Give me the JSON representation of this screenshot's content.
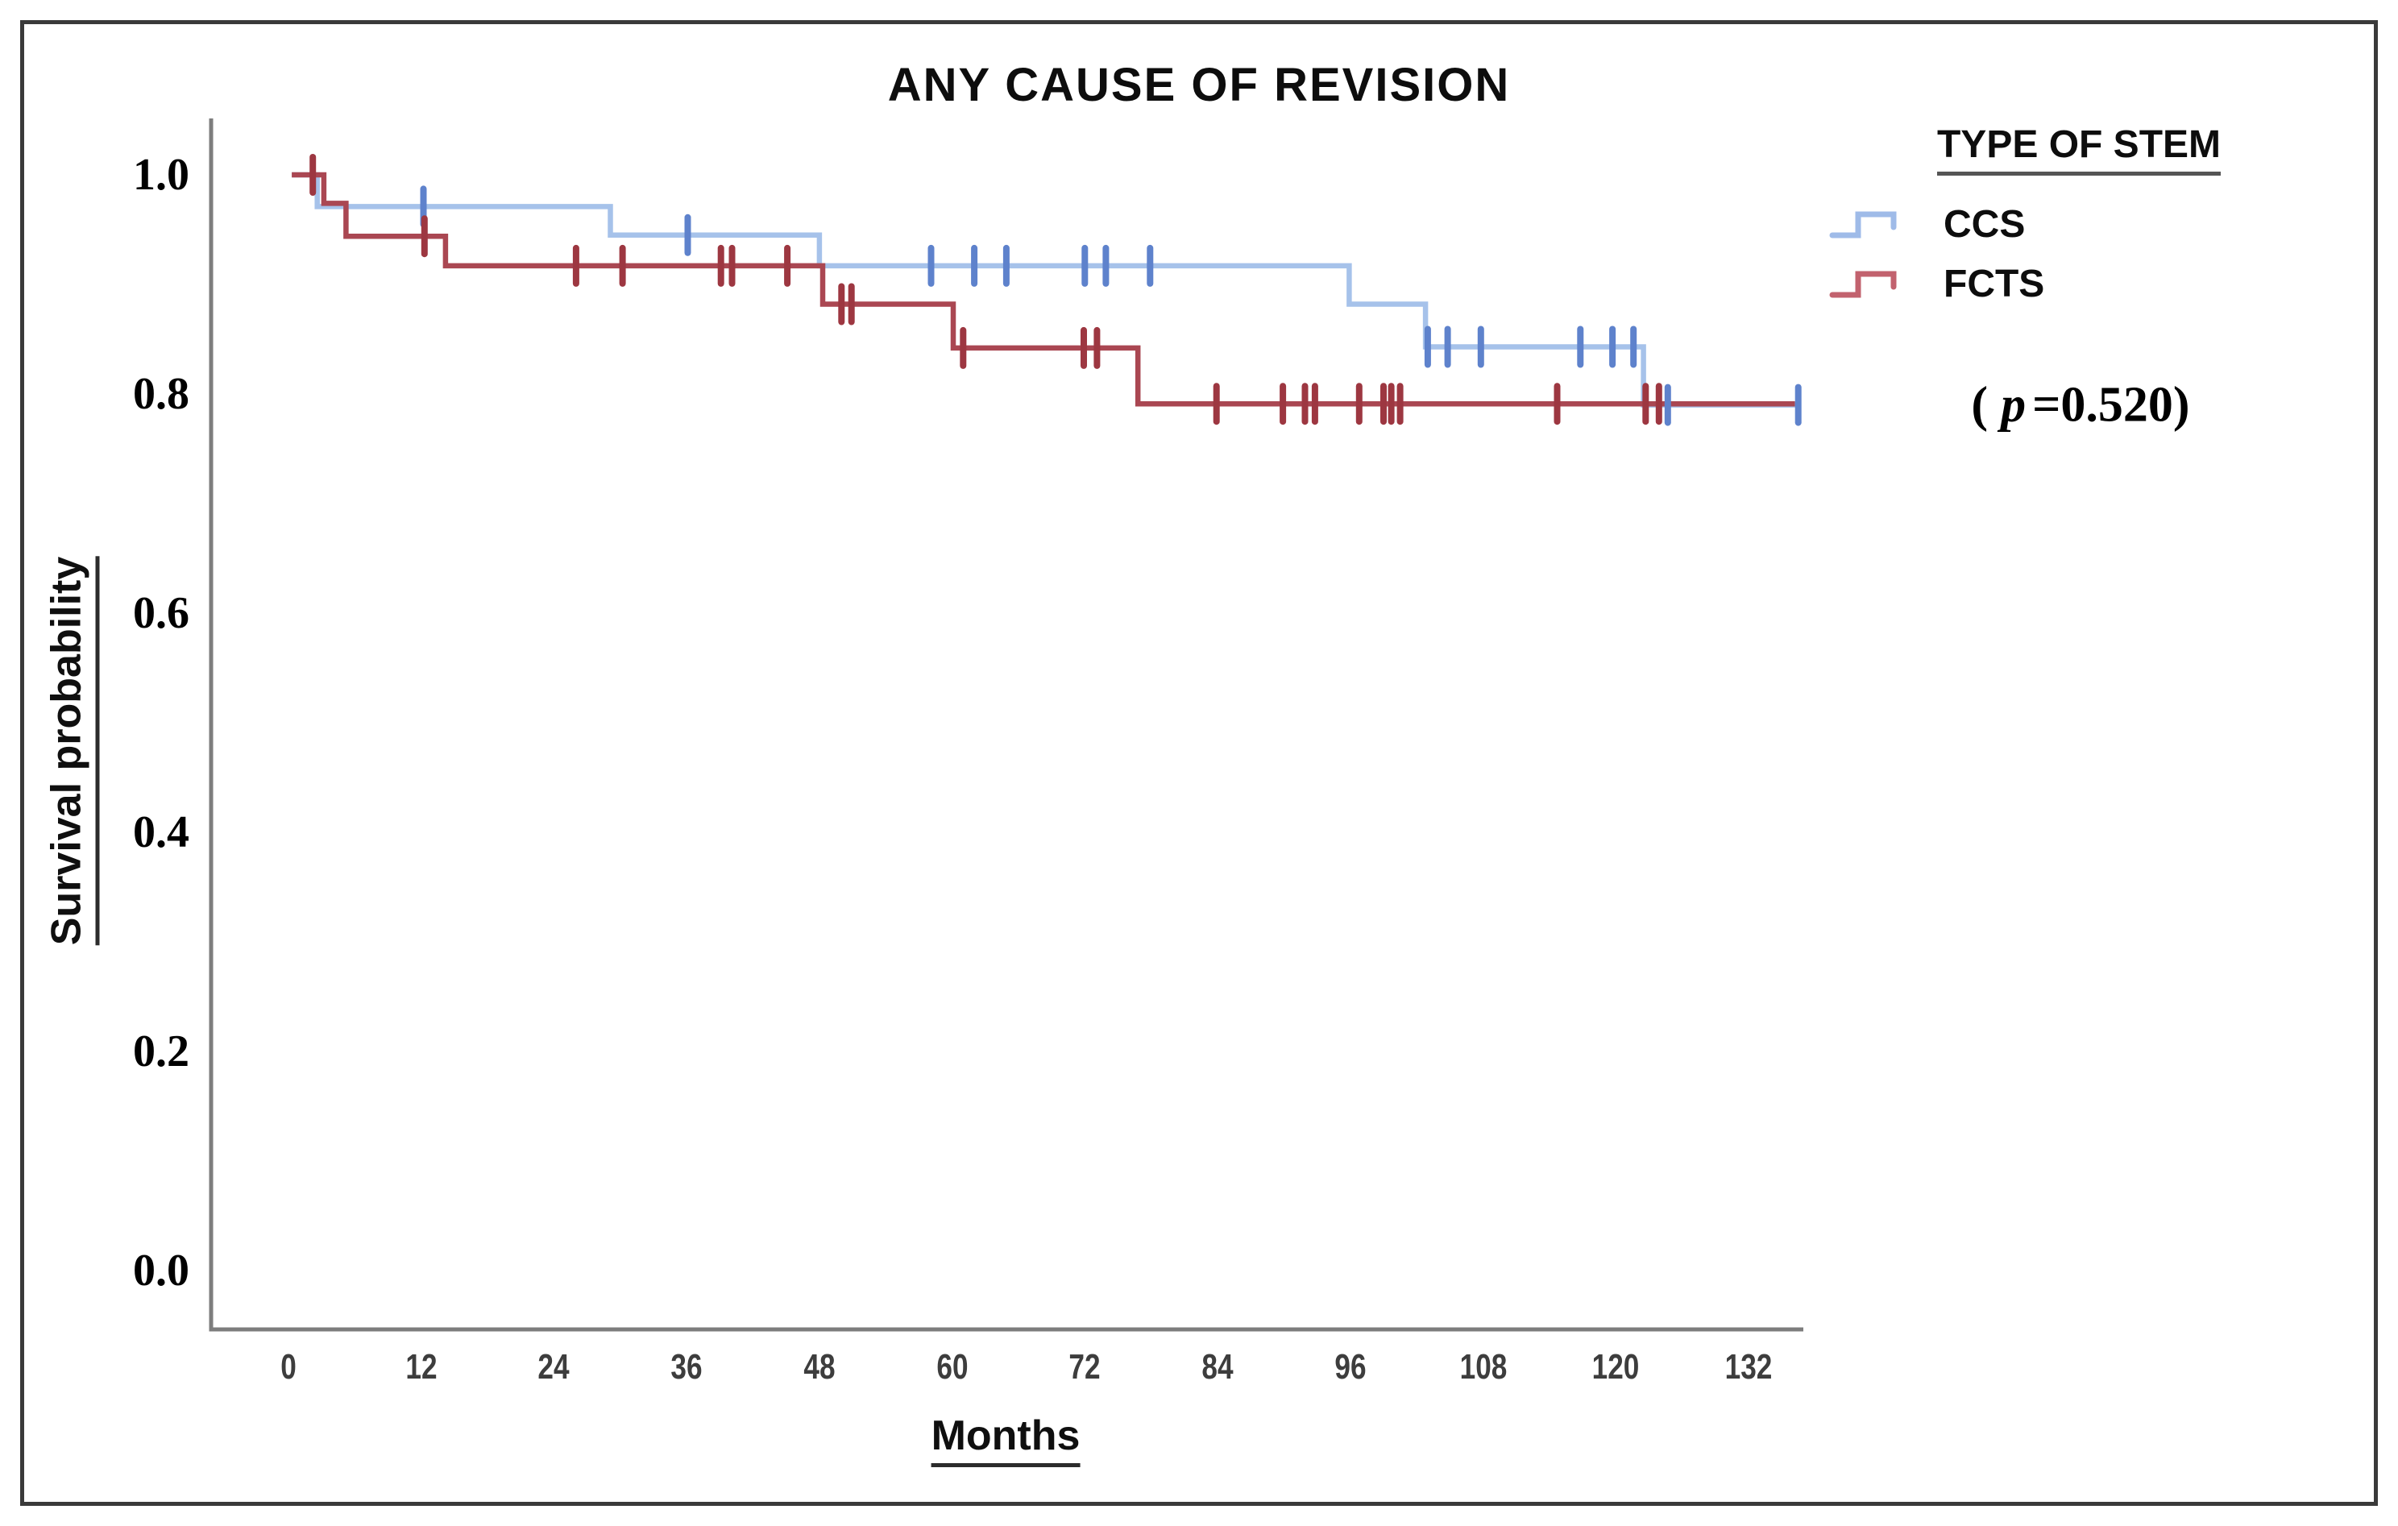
{
  "figure": {
    "title": "ANY CAUSE OF REVISION"
  },
  "axes": {
    "x_label": "Months",
    "y_label": "Survival probability"
  },
  "legend": {
    "title": "TYPE OF STEM",
    "items": [
      {
        "label": "CCS"
      },
      {
        "label": "FCTS"
      }
    ]
  },
  "annotation": {
    "open": "(",
    "p_symbol": "p",
    "equals_value": "=0.520",
    "close": ")"
  },
  "chart_data": {
    "type": "line",
    "subtype": "kaplan-meier-step",
    "title": "ANY CAUSE OF REVISION",
    "xlabel": "Months",
    "ylabel": "Survival probability",
    "x_ticks": [
      0,
      12,
      24,
      36,
      48,
      60,
      72,
      84,
      96,
      108,
      120,
      132
    ],
    "y_ticks": [
      {
        "label": "1.0",
        "value": 1.0
      },
      {
        "label": "0.8",
        "value": 0.8
      },
      {
        "label": "0.6",
        "value": 0.6
      },
      {
        "label": "0.4",
        "value": 0.4
      },
      {
        "label": "0.2",
        "value": 0.2
      },
      {
        "label": "0.0",
        "value": 0.0
      }
    ],
    "xlim": [
      0,
      138
    ],
    "ylim": [
      0.0,
      1.0
    ],
    "grid": false,
    "legend_position": "upper-right",
    "p_value_text": "(p=0.520)",
    "axis_color": "#7d7d7d",
    "series": [
      {
        "name": "CCS",
        "color": "#a6c2ea",
        "censor_color": "#5e82cc",
        "legend_color": "#9fbbe8",
        "points": [
          [
            0.3,
            1.0
          ],
          [
            2.6,
            0.971
          ],
          [
            29.1,
            0.945
          ],
          [
            48.0,
            0.917
          ],
          [
            95.9,
            0.882
          ],
          [
            102.8,
            0.843
          ],
          [
            122.5,
            0.79
          ]
        ],
        "end_month": 136.5,
        "censors": [
          [
            12.2,
            0.971
          ],
          [
            36.1,
            0.945
          ],
          [
            58.1,
            0.917
          ],
          [
            62.0,
            0.917
          ],
          [
            64.9,
            0.917
          ],
          [
            72.0,
            0.917
          ],
          [
            73.9,
            0.917
          ],
          [
            77.9,
            0.917
          ],
          [
            103.0,
            0.843
          ],
          [
            104.8,
            0.843
          ],
          [
            107.8,
            0.843
          ],
          [
            116.8,
            0.843
          ],
          [
            119.7,
            0.843
          ],
          [
            121.6,
            0.843
          ],
          [
            124.7,
            0.79
          ],
          [
            136.5,
            0.79
          ]
        ]
      },
      {
        "name": "FCTS",
        "color": "#aa4752",
        "censor_color": "#9d3741",
        "legend_color": "#c2626e",
        "points": [
          [
            0.3,
            1.0
          ],
          [
            3.2,
            0.974
          ],
          [
            5.2,
            0.944
          ],
          [
            14.2,
            0.917
          ],
          [
            48.3,
            0.882
          ],
          [
            60.1,
            0.842
          ],
          [
            76.8,
            0.791
          ]
        ],
        "end_month": 136.2,
        "censors": [
          [
            2.2,
            1.0
          ],
          [
            12.3,
            0.944
          ],
          [
            26.0,
            0.917
          ],
          [
            30.2,
            0.917
          ],
          [
            39.1,
            0.917
          ],
          [
            40.1,
            0.917
          ],
          [
            45.1,
            0.917
          ],
          [
            50.0,
            0.882
          ],
          [
            50.9,
            0.882
          ],
          [
            61.0,
            0.842
          ],
          [
            71.9,
            0.842
          ],
          [
            73.1,
            0.842
          ],
          [
            83.9,
            0.791
          ],
          [
            89.9,
            0.791
          ],
          [
            91.9,
            0.791
          ],
          [
            92.8,
            0.791
          ],
          [
            96.8,
            0.791
          ],
          [
            99.0,
            0.791
          ],
          [
            99.7,
            0.791
          ],
          [
            100.5,
            0.791
          ],
          [
            114.7,
            0.791
          ],
          [
            122.7,
            0.791
          ],
          [
            123.9,
            0.791
          ]
        ]
      }
    ]
  }
}
